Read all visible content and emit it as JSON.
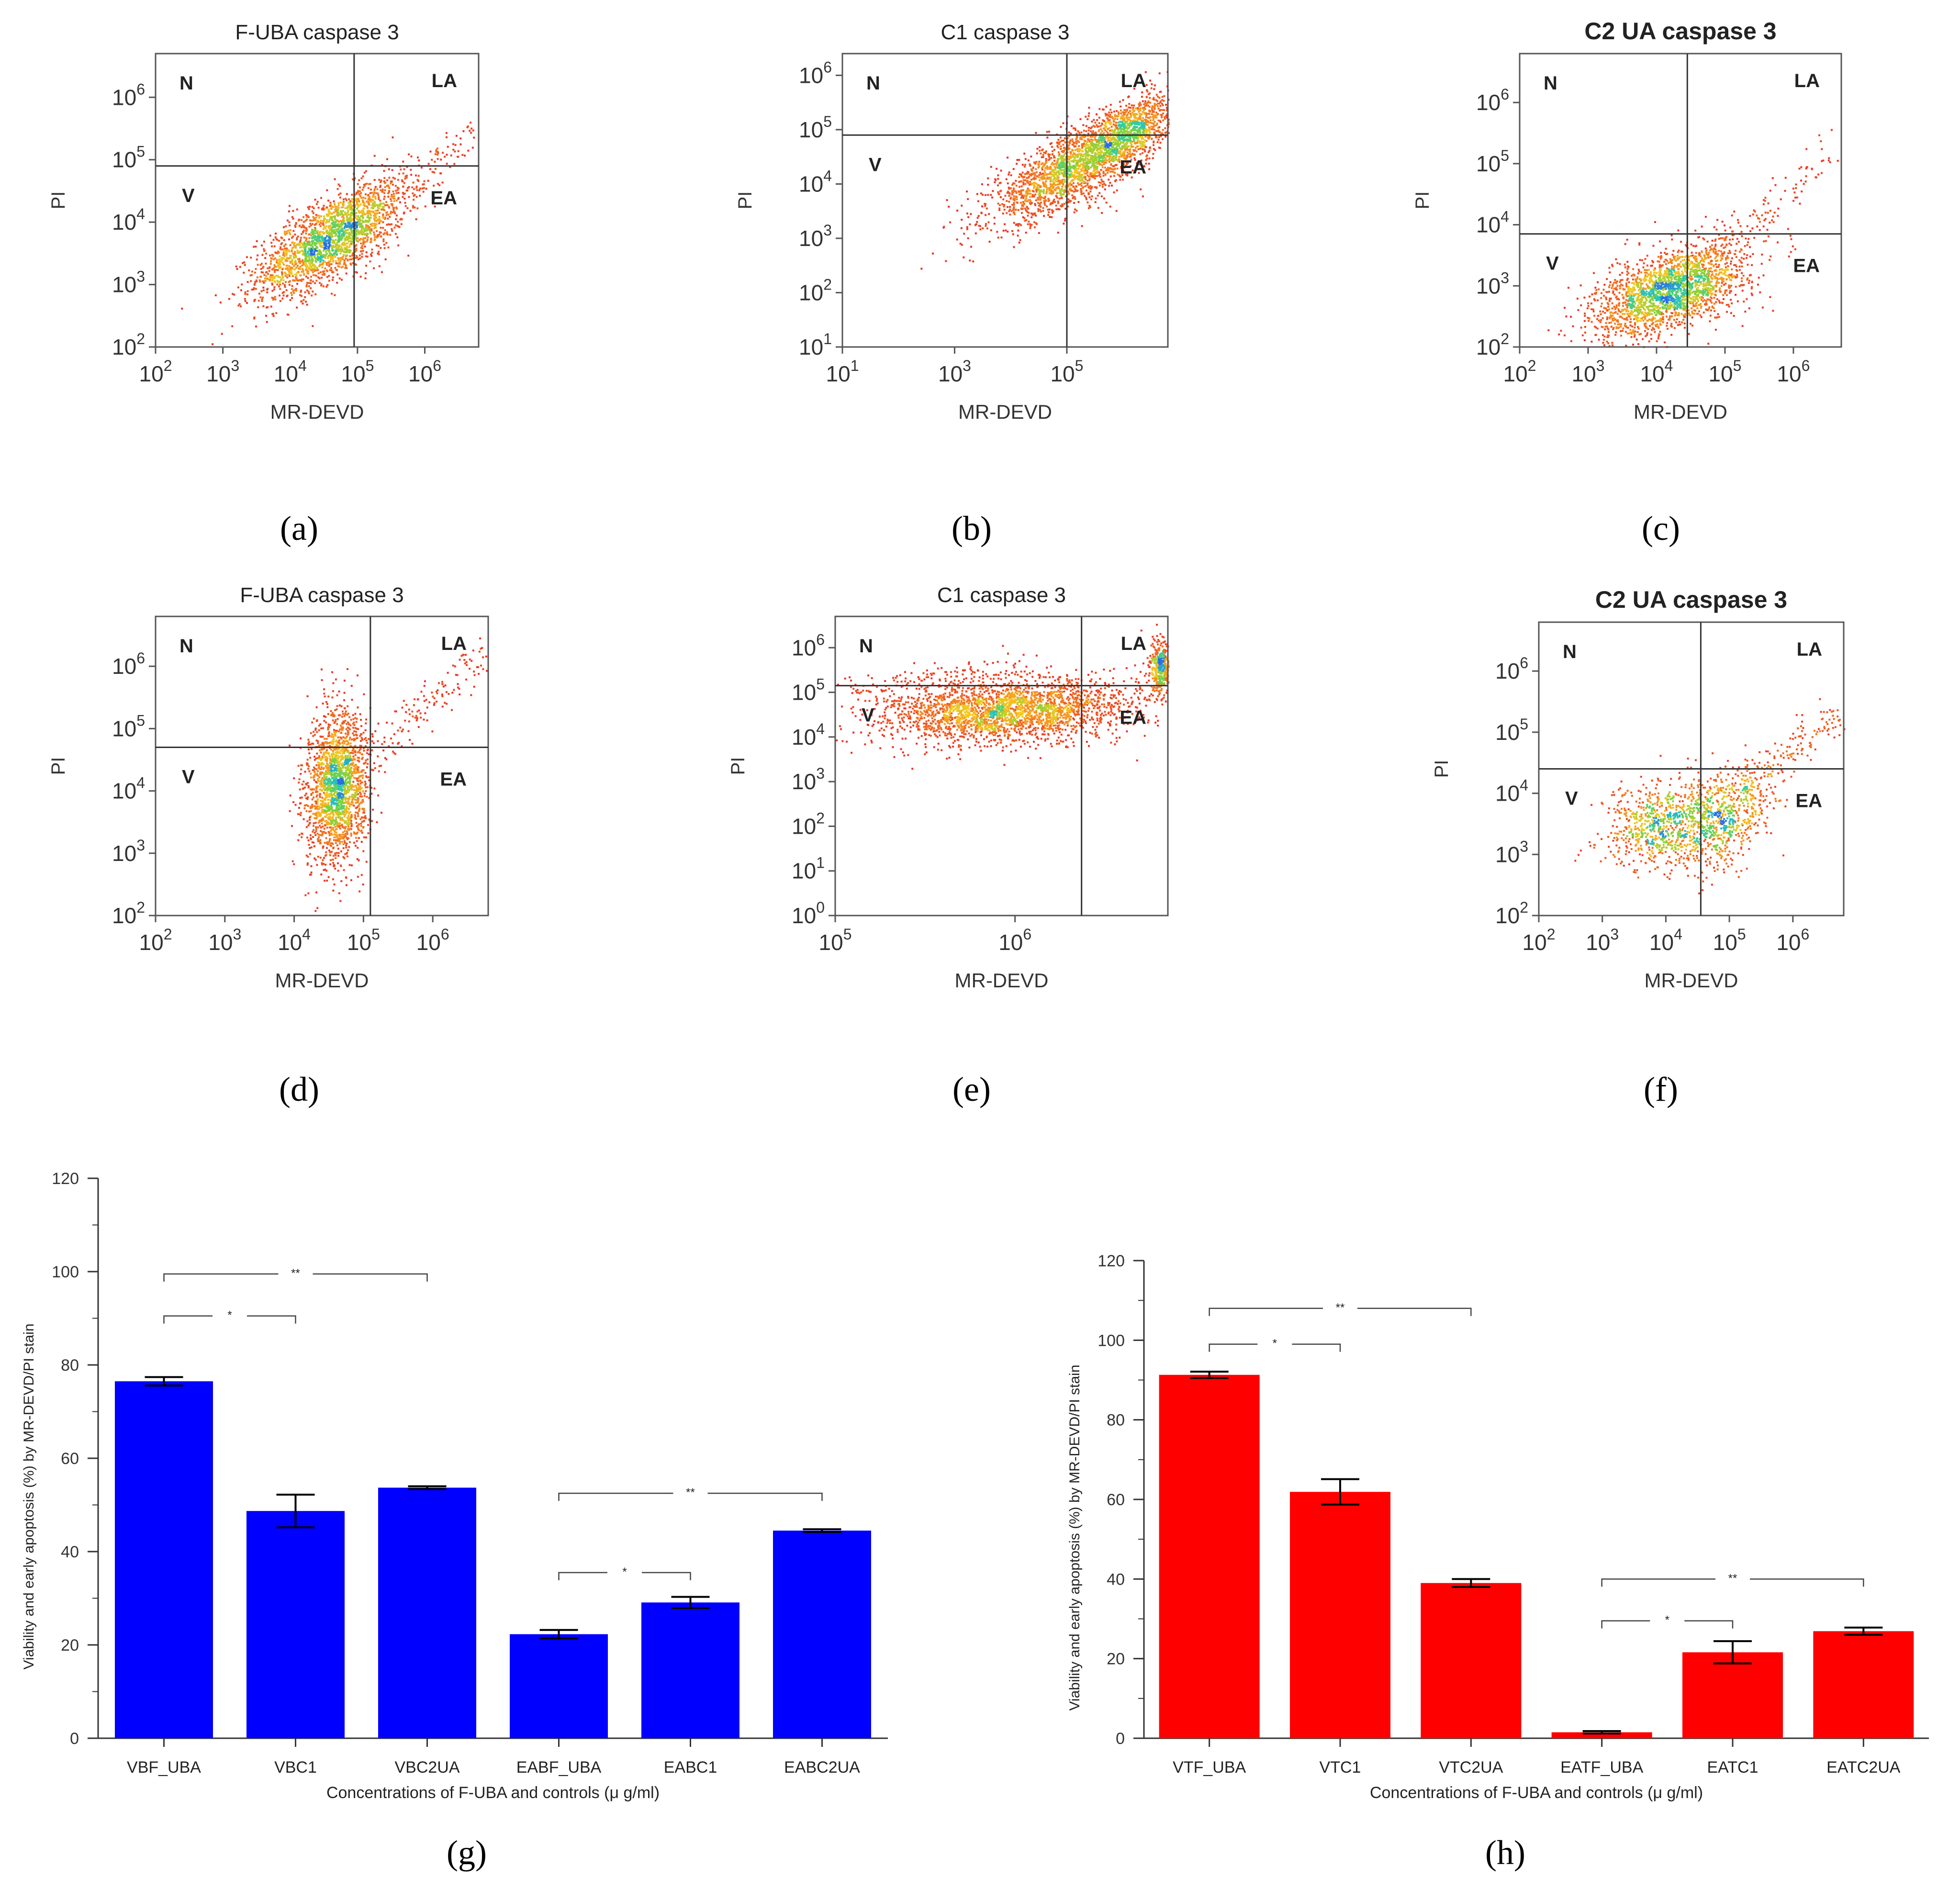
{
  "figure_labels": [
    "(a)",
    "(b)",
    "(c)",
    "(d)",
    "(e)",
    "(f)",
    "(g)",
    "(h)"
  ],
  "chart_data": [
    {
      "type": "scatter",
      "panel": "a",
      "title": "F-UBA caspase 3",
      "xlabel": "MR-DEVD",
      "ylabel": "PI",
      "xscale": "log",
      "yscale": "log",
      "xlim_exp": [
        2,
        6.8
      ],
      "ylim_exp": [
        2,
        6.7
      ],
      "xticks": [
        2,
        3,
        4,
        5,
        6
      ],
      "yticks": [
        2,
        3,
        4,
        5,
        6
      ],
      "gate_exp": [
        4.95,
        4.9
      ],
      "quadrants": [
        "N",
        "LA",
        "V",
        "EA"
      ],
      "clusters": [
        {
          "cx": 4.6,
          "cy": 3.75,
          "sx": 0.55,
          "sy": 0.45,
          "rho": 0.7,
          "n": 2200
        }
      ],
      "tail": {
        "from": [
          5.0,
          4.2
        ],
        "to": [
          6.7,
          5.4
        ],
        "n": 120
      }
    },
    {
      "type": "scatter",
      "panel": "b",
      "title": "C1 caspase 3",
      "xlabel": "MR-DEVD",
      "ylabel": "PI",
      "xscale": "log",
      "yscale": "log",
      "xlim_exp": [
        1,
        6.8
      ],
      "ylim_exp": [
        1,
        6.4
      ],
      "xticks": [
        1,
        3,
        5
      ],
      "yticks": [
        1,
        2,
        3,
        4,
        5,
        6
      ],
      "gate_exp": [
        5.0,
        4.9
      ],
      "quadrants": [
        "N",
        "LA",
        "V",
        "EA"
      ],
      "clusters": [
        {
          "cx": 5.1,
          "cy": 4.3,
          "sx": 0.75,
          "sy": 0.5,
          "rho": 0.75,
          "n": 2000
        },
        {
          "cx": 6.1,
          "cy": 5.0,
          "sx": 0.4,
          "sy": 0.35,
          "rho": 0.6,
          "n": 900
        }
      ],
      "tail": null
    },
    {
      "type": "scatter",
      "panel": "c",
      "title": "C2 UA caspase 3",
      "xlabel": "MR-DEVD",
      "ylabel": "PI",
      "xscale": "log",
      "yscale": "log",
      "xlim_exp": [
        2,
        6.7
      ],
      "ylim_exp": [
        2,
        6.8
      ],
      "xticks": [
        2,
        3,
        4,
        5,
        6
      ],
      "yticks": [
        2,
        3,
        4,
        5,
        6
      ],
      "gate_exp": [
        4.45,
        3.85
      ],
      "quadrants": [
        "N",
        "LA",
        "V",
        "EA"
      ],
      "clusters": [
        {
          "cx": 4.2,
          "cy": 2.95,
          "sx": 0.55,
          "sy": 0.38,
          "rho": 0.55,
          "n": 2200
        }
      ],
      "tail": {
        "from": [
          5.0,
          3.7
        ],
        "to": [
          6.6,
          5.3
        ],
        "n": 90
      }
    },
    {
      "type": "scatter",
      "panel": "d",
      "title": "F-UBA caspase 3",
      "xlabel": "MR-DEVD",
      "ylabel": "PI",
      "xscale": "log",
      "yscale": "log",
      "xlim_exp": [
        2,
        6.8
      ],
      "ylim_exp": [
        2,
        6.8
      ],
      "xticks": [
        2,
        3,
        4,
        5,
        6
      ],
      "yticks": [
        2,
        3,
        4,
        5,
        6
      ],
      "gate_exp": [
        5.1,
        4.7
      ],
      "quadrants": [
        "N",
        "LA",
        "V",
        "EA"
      ],
      "clusters": [
        {
          "cx": 4.6,
          "cy": 4.1,
          "sx": 0.22,
          "sy": 0.6,
          "rho": 0.1,
          "n": 2000
        }
      ],
      "tail": {
        "from": [
          5.0,
          4.5
        ],
        "to": [
          6.7,
          6.2
        ],
        "n": 140
      }
    },
    {
      "type": "scatter",
      "panel": "e",
      "title": "C1 caspase 3",
      "xlabel": "MR-DEVD",
      "ylabel": "PI",
      "xscale": "log",
      "yscale": "log",
      "xlim_exp": [
        5,
        6.85
      ],
      "ylim_exp": [
        0,
        6.7
      ],
      "xticks": [
        5,
        6
      ],
      "yticks": [
        0,
        1,
        2,
        3,
        4,
        5,
        6
      ],
      "gate_exp": [
        6.37,
        5.15
      ],
      "quadrants": [
        "N",
        "LA",
        "V",
        "EA"
      ],
      "clusters": [
        {
          "cx": 5.95,
          "cy": 4.6,
          "sx": 0.35,
          "sy": 0.35,
          "rho": 0.2,
          "n": 2600
        },
        {
          "cx": 6.8,
          "cy": 5.6,
          "sx": 0.03,
          "sy": 0.3,
          "rho": 0.0,
          "n": 400
        }
      ],
      "tail": {
        "from": [
          5.0,
          4.9
        ],
        "to": [
          6.0,
          5.6
        ],
        "n": 150
      }
    },
    {
      "type": "scatter",
      "panel": "f",
      "title": "C2 UA caspase 3",
      "xlabel": "MR-DEVD",
      "ylabel": "PI",
      "xscale": "log",
      "yscale": "log",
      "xlim_exp": [
        2,
        6.8
      ],
      "ylim_exp": [
        2,
        6.8
      ],
      "xticks": [
        2,
        3,
        4,
        5,
        6
      ],
      "yticks": [
        2,
        3,
        4,
        5,
        6
      ],
      "gate_exp": [
        4.55,
        4.4
      ],
      "quadrants": [
        "N",
        "LA",
        "V",
        "EA"
      ],
      "clusters": [
        {
          "cx": 3.9,
          "cy": 3.5,
          "sx": 0.45,
          "sy": 0.35,
          "rho": 0.3,
          "n": 700
        },
        {
          "cx": 4.85,
          "cy": 3.6,
          "sx": 0.4,
          "sy": 0.4,
          "rho": 0.4,
          "n": 700
        }
      ],
      "tail": {
        "from": [
          5.0,
          4.0
        ],
        "to": [
          6.8,
          5.3
        ],
        "n": 160
      }
    },
    {
      "type": "bar",
      "panel": "g",
      "categories": [
        "VBF_UBA",
        "VBC1",
        "VBC2UA",
        "EABF_UBA",
        "EABC1",
        "EABC2UA"
      ],
      "values": [
        76.5,
        48.7,
        53.7,
        22.3,
        29.1,
        44.5
      ],
      "errors": [
        0.9,
        3.5,
        0.3,
        0.9,
        1.2,
        0.3
      ],
      "color": "#0000ff",
      "ylim": [
        0,
        120
      ],
      "yticks": [
        0,
        20,
        40,
        60,
        80,
        100,
        120
      ],
      "ylabel": "Viability and early apoptosis (%) by MR-DEVD/PI stain",
      "xlabel": "Concentrations of F-UBA and controls (μ g/ml)",
      "significance": [
        {
          "from": 0,
          "to": 2,
          "y": 99.5,
          "label": "**"
        },
        {
          "from": 0,
          "to": 1,
          "y": 90.5,
          "label": "*"
        },
        {
          "from": 3,
          "to": 5,
          "y": 52.5,
          "label": "**"
        },
        {
          "from": 3,
          "to": 4,
          "y": 35.5,
          "label": "*"
        }
      ]
    },
    {
      "type": "bar",
      "panel": "h",
      "categories": [
        "VTF_UBA",
        "VTC1",
        "VTC2UA",
        "EATF_UBA",
        "EATC1",
        "EATC2UA"
      ],
      "values": [
        91.3,
        61.9,
        39.0,
        1.5,
        21.6,
        26.9
      ],
      "errors": [
        0.8,
        3.2,
        1.0,
        0.3,
        2.8,
        0.9
      ],
      "color": "#ff0000",
      "ylim": [
        0,
        120
      ],
      "yticks": [
        0,
        20,
        40,
        60,
        80,
        100,
        120
      ],
      "ylabel": "Viability and early apoptosis (%) by MR-DEVD/PI stain",
      "xlabel": "Concentrations of F-UBA and controls (μ g/ml)",
      "significance": [
        {
          "from": 0,
          "to": 2,
          "y": 108,
          "label": "**"
        },
        {
          "from": 0,
          "to": 1,
          "y": 99,
          "label": "*"
        },
        {
          "from": 3,
          "to": 5,
          "y": 40,
          "label": "**"
        },
        {
          "from": 3,
          "to": 4,
          "y": 29.5,
          "label": "*"
        }
      ]
    }
  ]
}
